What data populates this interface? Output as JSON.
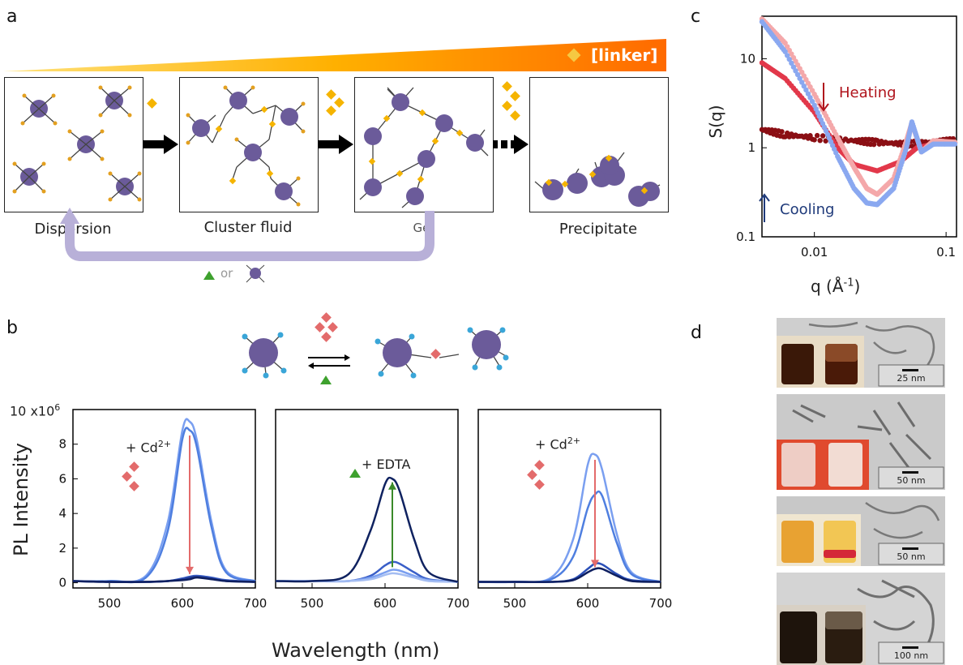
{
  "panel_a": {
    "letter": "a",
    "linker_label": "[linker]",
    "stages": [
      "Dispersion",
      "Cluster fluid",
      "Gel",
      "Precipitate"
    ],
    "return_or": "or",
    "colors": {
      "particle": "#6b5b9a",
      "ligand_tip": "#e3a020",
      "linker": "#f5b400",
      "gradient_start": "#ffd21a",
      "gradient_end": "#ff7a00",
      "return_arrow": "#b8b0d8"
    }
  },
  "panel_b": {
    "letter": "b",
    "ylabel": "PL Intensity",
    "xlabel": "Wavelength (nm)",
    "y_multiplier": "10 x10",
    "y_multiplier_exp": "6",
    "annotations": [
      {
        "prefix": "+ Cd",
        "sup": "2+"
      },
      {
        "prefix": "+ EDTA",
        "sup": ""
      },
      {
        "prefix": "+ Cd",
        "sup": "2+"
      }
    ],
    "colors": {
      "ion": "#e36b6b",
      "edta": "#3ea12e",
      "ligand": "#3aa6d8",
      "down_arrow": "#e36b6b",
      "up_arrow": "#3a8a2a"
    }
  },
  "panel_c": {
    "letter": "c",
    "ylabel": "S(q)",
    "xlabel": "q (Å",
    "xlabel_sup": "-1",
    "xlabel_end": ")",
    "heating": "Heating",
    "cooling": "Cooling",
    "colors": {
      "dark_red": "#8b0f14",
      "red": "#e2384a",
      "pink": "#f4a8aa",
      "blue": "#8aa8f0",
      "heating_text": "#b0141c",
      "cooling_text": "#1f3a7a"
    }
  },
  "panel_d": {
    "letter": "d",
    "scale_bars": [
      "25 nm",
      "50 nm",
      "50 nm",
      "100 nm"
    ]
  },
  "chart_data": [
    {
      "type": "line",
      "panel": "b-left",
      "x": [
        450,
        500,
        550,
        580,
        600,
        610,
        620,
        640,
        660,
        700
      ],
      "xlim": [
        450,
        700
      ],
      "ylim": [
        -0.3,
        10
      ],
      "x_ticks": [
        "500",
        "600",
        "700"
      ],
      "y_ticks": [
        "0",
        "2",
        "4",
        "6",
        "8",
        "10"
      ],
      "series": [
        {
          "values": [
            0.1,
            0.1,
            0.4,
            3.5,
            8.8,
            9.3,
            8.2,
            3.5,
            0.7,
            0.1
          ]
        },
        {
          "values": [
            0.1,
            0.1,
            0.3,
            3.0,
            8.3,
            8.8,
            7.8,
            3.2,
            0.6,
            0.1
          ]
        },
        {
          "values": [
            0.1,
            0.05,
            0.05,
            0.1,
            0.25,
            0.35,
            0.4,
            0.3,
            0.15,
            0.05
          ]
        },
        {
          "values": [
            0.1,
            0.05,
            0.05,
            0.1,
            0.2,
            0.3,
            0.35,
            0.25,
            0.1,
            0.05
          ]
        },
        {
          "values": [
            0.1,
            0.05,
            0.05,
            0.1,
            0.15,
            0.2,
            0.3,
            0.2,
            0.1,
            0.05
          ]
        }
      ]
    },
    {
      "type": "line",
      "panel": "b-middle",
      "x": [
        450,
        500,
        550,
        580,
        600,
        610,
        620,
        640,
        660,
        700
      ],
      "xlim": [
        450,
        700
      ],
      "ylim": [
        -0.3,
        10
      ],
      "x_ticks": [
        "500",
        "600",
        "700"
      ],
      "series": [
        {
          "values": [
            0.1,
            0.1,
            0.1,
            0.4,
            1.0,
            1.2,
            1.1,
            0.6,
            0.2,
            0.05
          ]
        },
        {
          "values": [
            0.1,
            0.1,
            0.1,
            0.3,
            0.6,
            0.75,
            0.7,
            0.4,
            0.15,
            0.05
          ]
        },
        {
          "values": [
            0.1,
            0.1,
            0.1,
            0.2,
            0.45,
            0.55,
            0.5,
            0.3,
            0.1,
            0.05
          ]
        },
        {
          "values": [
            0.1,
            0.1,
            0.5,
            3.0,
            5.7,
            6.0,
            5.3,
            2.5,
            0.6,
            0.05
          ]
        }
      ]
    },
    {
      "type": "line",
      "panel": "b-right",
      "x": [
        450,
        500,
        550,
        580,
        600,
        610,
        620,
        640,
        660,
        700
      ],
      "xlim": [
        450,
        700
      ],
      "ylim": [
        -0.3,
        10
      ],
      "x_ticks": [
        "500",
        "600",
        "700"
      ],
      "series": [
        {
          "values": [
            0.05,
            0.05,
            0.3,
            2.5,
            6.8,
            7.4,
            6.5,
            2.8,
            0.6,
            0.05
          ]
        },
        {
          "values": [
            0.05,
            0.05,
            0.2,
            1.5,
            4.3,
            5.1,
            5.0,
            2.3,
            0.5,
            0.05
          ]
        },
        {
          "values": [
            0.05,
            0.05,
            0.05,
            0.2,
            0.8,
            1.1,
            1.05,
            0.5,
            0.15,
            0.05
          ]
        },
        {
          "values": [
            0.05,
            0.05,
            0.05,
            0.15,
            0.6,
            0.8,
            0.8,
            0.4,
            0.1,
            0.05
          ]
        }
      ]
    },
    {
      "type": "scatter",
      "panel": "c",
      "xscale": "log",
      "yscale": "log",
      "xlim": [
        0.004,
        0.12
      ],
      "ylim": [
        0.1,
        30
      ],
      "x_ticks": [
        "0.01",
        "0.1"
      ],
      "y_ticks": [
        "0.1",
        "1",
        "10"
      ],
      "series": [
        {
          "x": [
            0.004,
            0.006,
            0.01,
            0.02,
            0.03,
            0.05,
            0.08,
            0.12
          ],
          "values": [
            1.6,
            1.4,
            1.3,
            1.2,
            1.15,
            1.1,
            1.15,
            1.2
          ]
        },
        {
          "x": [
            0.004,
            0.006,
            0.01,
            0.015,
            0.02,
            0.03,
            0.045,
            0.06,
            0.08,
            0.12
          ],
          "values": [
            9.0,
            6.0,
            2.5,
            1.0,
            0.65,
            0.55,
            0.7,
            1.0,
            1.1,
            1.15
          ]
        },
        {
          "x": [
            0.004,
            0.006,
            0.01,
            0.015,
            0.02,
            0.025,
            0.03,
            0.04,
            0.05,
            0.055,
            0.065,
            0.08,
            0.12
          ],
          "values": [
            28,
            15,
            4.0,
            1.3,
            0.6,
            0.35,
            0.3,
            0.45,
            1.2,
            1.9,
            0.9,
            1.2,
            1.15
          ]
        },
        {
          "x": [
            0.004,
            0.006,
            0.01,
            0.015,
            0.02,
            0.025,
            0.03,
            0.04,
            0.05,
            0.055,
            0.065,
            0.08,
            0.12
          ],
          "values": [
            26,
            12,
            3.0,
            0.8,
            0.35,
            0.24,
            0.23,
            0.35,
            1.0,
            1.95,
            0.9,
            1.1,
            1.1
          ]
        }
      ]
    }
  ]
}
